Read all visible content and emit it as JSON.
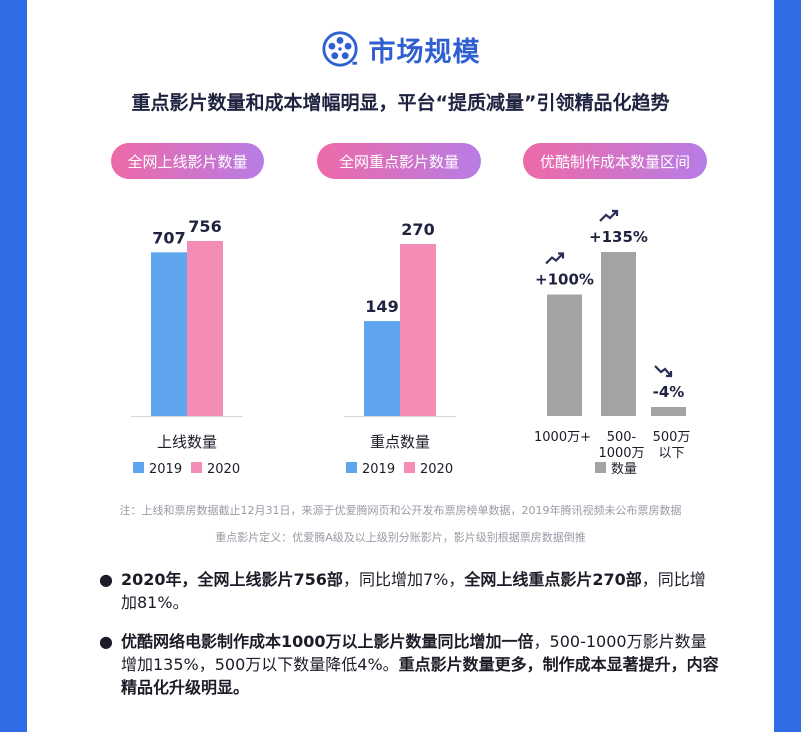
{
  "header": {
    "title": "市场规模",
    "subtitle": "重点影片数量和成本增幅明显，平台“提质减量”引领精品化趋势"
  },
  "pills": [
    "全网上线影片数量",
    "全网重点影片数量",
    "优酷制作成本数量区间"
  ],
  "colors": {
    "y2019": "#5ea5ee",
    "y2020": "#f38db6",
    "gray": "#a3a3a3",
    "title_blue": "#2f5fd0"
  },
  "chart_data": [
    {
      "type": "bar",
      "xlabel": "上线数量",
      "series": [
        {
          "name": "2019",
          "values": [
            707
          ]
        },
        {
          "name": "2020",
          "values": [
            756
          ]
        }
      ],
      "data_labels": [
        "707",
        "756"
      ],
      "legend": [
        "2019",
        "2020"
      ]
    },
    {
      "type": "bar",
      "xlabel": "重点数量",
      "series": [
        {
          "name": "2019",
          "values": [
            149
          ]
        },
        {
          "name": "2020",
          "values": [
            270
          ]
        }
      ],
      "data_labels": [
        "149",
        "270"
      ],
      "legend": [
        "2019",
        "2020"
      ]
    },
    {
      "type": "bar",
      "categories": [
        "1000万+",
        "500-1000万",
        "500万以下"
      ],
      "category_lines": [
        [
          "1000万+"
        ],
        [
          "500-",
          "1000万"
        ],
        [
          "500万",
          "以下"
        ]
      ],
      "changes": [
        "+100%",
        "+135%",
        "-4%"
      ],
      "change_values": [
        100,
        135,
        -4
      ],
      "trend_icons": [
        "trend-up-icon",
        "trend-up-icon",
        "trend-down-icon"
      ],
      "series": [
        {
          "name": "数量",
          "values": [
            100,
            135,
            -4
          ]
        }
      ],
      "legend": [
        "数量"
      ]
    }
  ],
  "notes": [
    "注：上线和票房数据截止12月31日，来源于优爱腾网页和公开发布票房榜单数据，2019年腾讯视频未公布票房数据",
    "重点影片定义：优爱腾A级及以上级别分账影片，影片级别根据票房数据倒推"
  ],
  "bullets": [
    {
      "parts": [
        {
          "text": "2020年，全网上线影片756部",
          "bold": true
        },
        {
          "text": "，同比增加7%，",
          "bold": false
        },
        {
          "text": "全网上线重点影片270部",
          "bold": true
        },
        {
          "text": "，同比增加81%。",
          "bold": false
        }
      ]
    },
    {
      "parts": [
        {
          "text": "优酷网络电影制作成本1000万以上影片数量同比增加一倍",
          "bold": true
        },
        {
          "text": "，500-1000万影片数量增加135%，500万以下数量降低4%。",
          "bold": false
        },
        {
          "text": "重点影片数量更多，制作成本显著提升，内容精品化升级明显。",
          "bold": true
        }
      ]
    }
  ]
}
